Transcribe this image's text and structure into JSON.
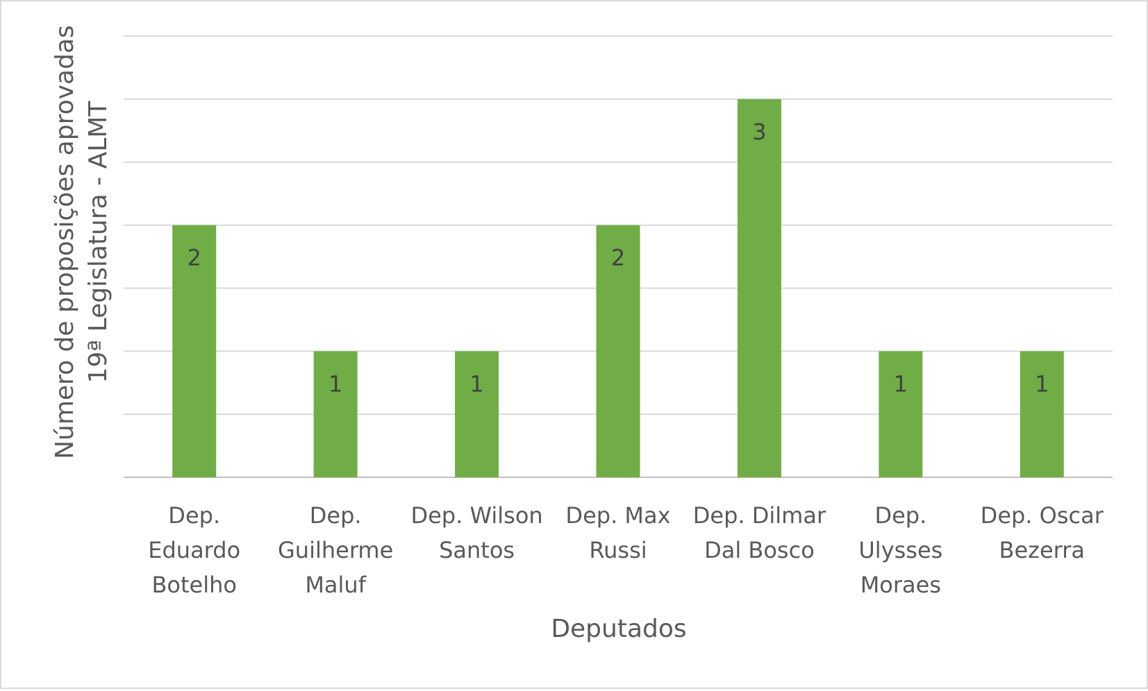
{
  "chart_data": {
    "type": "bar",
    "title": "",
    "xlabel": "Deputados",
    "ylabel_lines": [
      "Número de proposições aprovadas",
      "19ª Legislatura - ALMT"
    ],
    "categories": [
      [
        "Dep.",
        "Eduardo",
        "Botelho"
      ],
      [
        "Dep.",
        "Guilherme",
        "Maluf"
      ],
      [
        "Dep. Wilson",
        "Santos"
      ],
      [
        "Dep. Max",
        "Russi"
      ],
      [
        "Dep. Dilmar",
        "Dal Bosco"
      ],
      [
        "Dep.",
        "Ulysses",
        "Moraes"
      ],
      [
        "Dep. Oscar",
        "Bezerra"
      ]
    ],
    "values": [
      2,
      1,
      1,
      2,
      3,
      1,
      1
    ],
    "data_labels": [
      "2",
      "1",
      "1",
      "2",
      "3",
      "1",
      "1"
    ],
    "ylim": [
      0,
      3.5
    ],
    "gridline_step": 0.5,
    "grid": true,
    "legend": "none",
    "colors": {
      "bar": "#70ad47",
      "grid": "#d9d9d9",
      "axis": "#bfbfbf",
      "text": "#595959",
      "data_label": "#404040"
    }
  }
}
